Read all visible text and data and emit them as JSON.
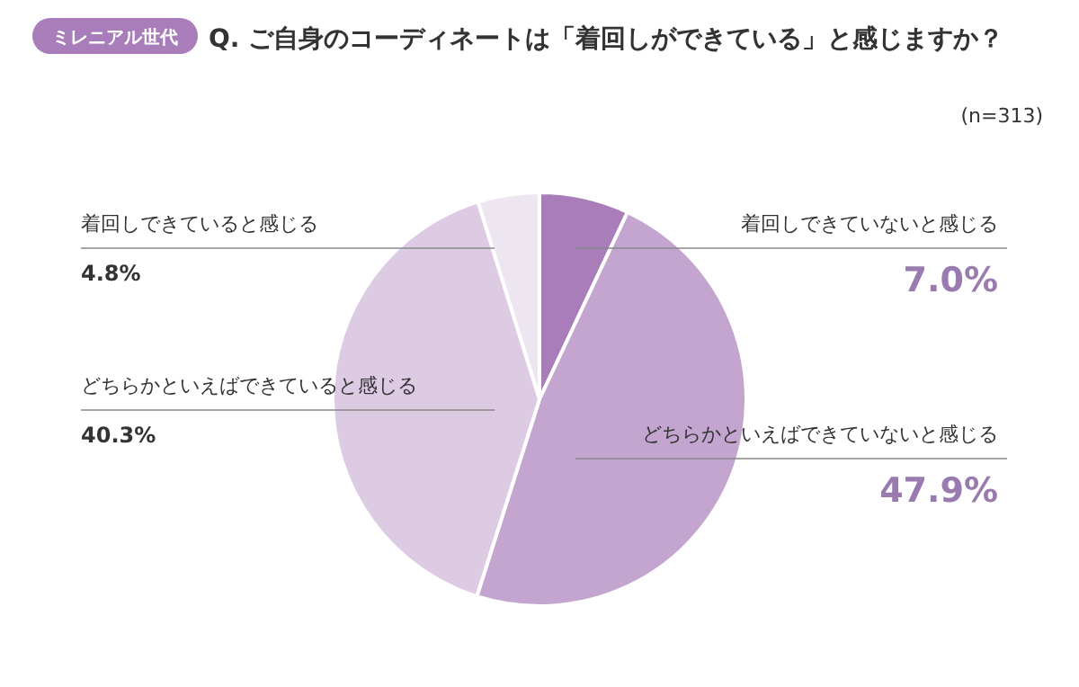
{
  "chart_data": {
    "type": "pie",
    "title": "Q. ご自身のコーディネートは「着回しができている」と感じますか？",
    "subtitle": "(n=313)",
    "annotations": [
      "ミレニアル世代"
    ],
    "categories": [
      "着回しできていないと感じる",
      "どちらかといえばできていないと感じる",
      "どちらかといえばできていると感じる",
      "着回しできていると感じる"
    ],
    "values": [
      7.0,
      47.9,
      40.3,
      4.8
    ],
    "value_labels": [
      "7.0%",
      "47.9%",
      "40.3%",
      "4.8%"
    ],
    "colors": [
      "#a87db9",
      "#c3a5cf",
      "#dccbe3",
      "#ede5f0"
    ]
  }
}
